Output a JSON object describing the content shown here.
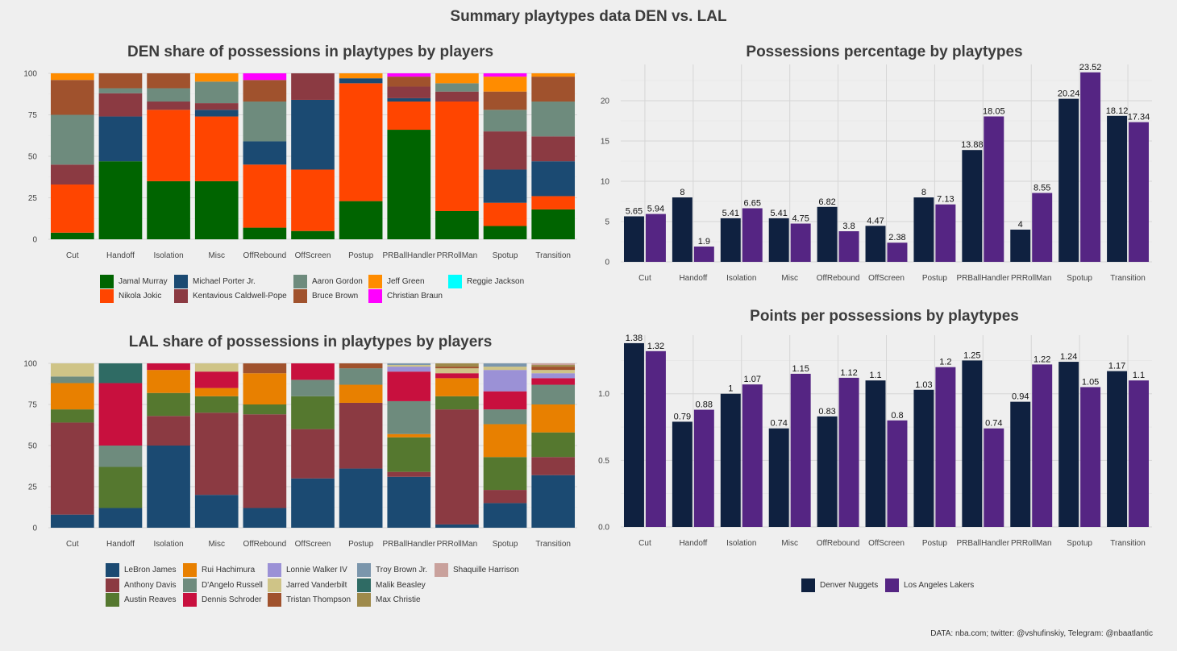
{
  "title": "Summary playtypes data DEN vs. LAL",
  "caption": "DATA: nba.com; twitter: @vshufinskiy, Telegram: @nbaatlantic",
  "legend_den": [
    {
      "name": "Jamal Murray",
      "color": "#006400"
    },
    {
      "name": "Nikola Jokic",
      "color": "#ff4500"
    },
    {
      "name": "Michael Porter Jr.",
      "color": "#1b4a72"
    },
    {
      "name": "Kentavious Caldwell-Pope",
      "color": "#8b3a42"
    },
    {
      "name": "Aaron Gordon",
      "color": "#6e8b7d"
    },
    {
      "name": "Bruce Brown",
      "color": "#a0522d"
    },
    {
      "name": "Jeff Green",
      "color": "#ff8c00"
    },
    {
      "name": "Christian Braun",
      "color": "#ff00ff"
    },
    {
      "name": "Reggie Jackson",
      "color": "#00ffff"
    }
  ],
  "legend_lal": [
    {
      "name": "LeBron James",
      "color": "#1b4a72"
    },
    {
      "name": "Anthony Davis",
      "color": "#8b3a42"
    },
    {
      "name": "Austin Reaves",
      "color": "#55782f"
    },
    {
      "name": "Rui Hachimura",
      "color": "#e88000"
    },
    {
      "name": "D'Angelo Russell",
      "color": "#6e8b7d"
    },
    {
      "name": "Dennis Schroder",
      "color": "#c8103e"
    },
    {
      "name": "Lonnie Walker IV",
      "color": "#9b91d6"
    },
    {
      "name": "Jarred Vanderbilt",
      "color": "#cfc487"
    },
    {
      "name": "Tristan Thompson",
      "color": "#a0522d"
    },
    {
      "name": "Troy Brown Jr.",
      "color": "#7b96ac"
    },
    {
      "name": "Malik Beasley",
      "color": "#2f6b64"
    },
    {
      "name": "Max Christie",
      "color": "#9e8a4b"
    },
    {
      "name": "Shaquille Harrison",
      "color": "#c9a19c"
    }
  ],
  "legend_teams": [
    {
      "name": "Denver Nuggets",
      "color": "#0f2140"
    },
    {
      "name": "Los Angeles Lakers",
      "color": "#552583"
    }
  ],
  "chart_data": [
    {
      "type": "bar",
      "stacked": true,
      "title": "DEN share of possessions in playtypes by players",
      "categories": [
        "Cut",
        "Handoff",
        "Isolation",
        "Misc",
        "OffRebound",
        "OffScreen",
        "Postup",
        "PRBallHandler",
        "PRRollMan",
        "Spotup",
        "Transition"
      ],
      "ylim": [
        0,
        100
      ],
      "yticks": [
        0,
        25,
        50,
        75,
        100
      ],
      "series": [
        {
          "name": "Jamal Murray",
          "color": "#006400",
          "values": [
            4,
            47,
            35,
            35,
            7,
            5,
            23,
            66,
            17,
            8,
            18
          ]
        },
        {
          "name": "Nikola Jokic",
          "color": "#ff4500",
          "values": [
            29,
            0,
            43,
            39,
            38,
            37,
            71,
            17,
            66,
            14,
            8
          ]
        },
        {
          "name": "Michael Porter Jr.",
          "color": "#1b4a72",
          "values": [
            0,
            27,
            0,
            4,
            14,
            42,
            3,
            2,
            0,
            20,
            21
          ]
        },
        {
          "name": "Kentavious Caldwell-Pope",
          "color": "#8b3a42",
          "values": [
            12,
            14,
            5,
            4,
            0,
            16,
            0,
            7,
            6,
            23,
            15
          ]
        },
        {
          "name": "Aaron Gordon",
          "color": "#6e8b7d",
          "values": [
            30,
            3,
            8,
            13,
            24,
            0,
            0,
            0,
            5,
            13,
            21
          ]
        },
        {
          "name": "Bruce Brown",
          "color": "#a0522d",
          "values": [
            21,
            9,
            9,
            0,
            13,
            0,
            0,
            6,
            0,
            11,
            15
          ]
        },
        {
          "name": "Jeff Green",
          "color": "#ff8c00",
          "values": [
            4,
            0,
            0,
            5,
            0,
            0,
            3,
            0,
            6,
            9,
            2
          ]
        },
        {
          "name": "Christian Braun",
          "color": "#ff00ff",
          "values": [
            0,
            0,
            0,
            0,
            4,
            0,
            0,
            2,
            0,
            2,
            0
          ]
        }
      ]
    },
    {
      "type": "bar",
      "title": "Possessions percentage by playtypes",
      "categories": [
        "Cut",
        "Handoff",
        "Isolation",
        "Misc",
        "OffRebound",
        "OffScreen",
        "Postup",
        "PRBallHandler",
        "PRRollMan",
        "Spotup",
        "Transition"
      ],
      "ylim": [
        0,
        24.5
      ],
      "yticks": [
        0,
        5,
        10,
        15,
        20
      ],
      "series": [
        {
          "name": "Denver Nuggets",
          "color": "#0f2140",
          "values": [
            5.65,
            8,
            5.41,
            5.41,
            6.82,
            4.47,
            8,
            13.88,
            4,
            20.24,
            18.12
          ]
        },
        {
          "name": "Los Angeles Lakers",
          "color": "#552583",
          "values": [
            5.94,
            1.9,
            6.65,
            4.75,
            3.8,
            2.38,
            7.13,
            18.05,
            8.55,
            23.52,
            17.34
          ]
        }
      ]
    },
    {
      "type": "bar",
      "stacked": true,
      "title": "LAL share of possessions in playtypes by players",
      "categories": [
        "Cut",
        "Handoff",
        "Isolation",
        "Misc",
        "OffRebound",
        "OffScreen",
        "Postup",
        "PRBallHandler",
        "PRRollMan",
        "Spotup",
        "Transition"
      ],
      "ylim": [
        0,
        100
      ],
      "yticks": [
        0,
        25,
        50,
        75,
        100
      ],
      "series": [
        {
          "name": "LeBron James",
          "color": "#1b4a72",
          "values": [
            8,
            12,
            50,
            20,
            12,
            30,
            36,
            31,
            2,
            15,
            32
          ]
        },
        {
          "name": "Anthony Davis",
          "color": "#8b3a42",
          "values": [
            56,
            0,
            18,
            50,
            57,
            30,
            40,
            3,
            70,
            8,
            11
          ]
        },
        {
          "name": "Austin Reaves",
          "color": "#55782f",
          "values": [
            8,
            25,
            14,
            10,
            6,
            20,
            0,
            21,
            8,
            20,
            15
          ]
        },
        {
          "name": "Rui Hachimura",
          "color": "#e88000",
          "values": [
            16,
            0,
            14,
            5,
            19,
            0,
            11,
            2,
            11,
            20,
            17
          ]
        },
        {
          "name": "D'Angelo Russell",
          "color": "#6e8b7d",
          "values": [
            4,
            13,
            0,
            0,
            0,
            10,
            10,
            20,
            0,
            9,
            12
          ]
        },
        {
          "name": "Dennis Schroder",
          "color": "#c8103e",
          "values": [
            0,
            38,
            4,
            10,
            0,
            10,
            0,
            18,
            3,
            11,
            4
          ]
        },
        {
          "name": "Lonnie Walker IV",
          "color": "#9b91d6",
          "values": [
            0,
            0,
            0,
            0,
            0,
            0,
            0,
            3,
            0,
            13,
            3
          ]
        },
        {
          "name": "Jarred Vanderbilt",
          "color": "#cfc487",
          "values": [
            8,
            0,
            0,
            5,
            0,
            0,
            0,
            1,
            3,
            2,
            2
          ]
        },
        {
          "name": "Tristan Thompson",
          "color": "#a0522d",
          "values": [
            0,
            0,
            0,
            0,
            6,
            0,
            3,
            0,
            1,
            0,
            2
          ]
        },
        {
          "name": "Troy Brown Jr.",
          "color": "#7b96ac",
          "values": [
            0,
            0,
            0,
            0,
            0,
            0,
            0,
            1,
            0,
            2,
            0
          ]
        },
        {
          "name": "Malik Beasley",
          "color": "#2f6b64",
          "values": [
            0,
            12,
            0,
            0,
            0,
            0,
            0,
            0,
            0,
            0,
            0
          ]
        },
        {
          "name": "Max Christie",
          "color": "#9e8a4b",
          "values": [
            0,
            0,
            0,
            0,
            0,
            0,
            0,
            0,
            2,
            0,
            1
          ]
        },
        {
          "name": "Shaquille Harrison",
          "color": "#c9a19c",
          "values": [
            0,
            0,
            0,
            0,
            0,
            0,
            0,
            0,
            0,
            0,
            1
          ]
        }
      ]
    },
    {
      "type": "bar",
      "title": "Points per possessions by playtypes",
      "categories": [
        "Cut",
        "Handoff",
        "Isolation",
        "Misc",
        "OffRebound",
        "OffScreen",
        "Postup",
        "PRBallHandler",
        "PRRollMan",
        "Spotup",
        "Transition"
      ],
      "ylim": [
        0,
        1.44
      ],
      "yticks": [
        0.0,
        0.5,
        1.0
      ],
      "ytick_labels": [
        "0.0",
        "0.5",
        "1.0"
      ],
      "series": [
        {
          "name": "Denver Nuggets",
          "color": "#0f2140",
          "values": [
            1.38,
            0.79,
            1,
            0.74,
            0.83,
            1.1,
            1.03,
            1.25,
            0.94,
            1.24,
            1.17
          ]
        },
        {
          "name": "Los Angeles Lakers",
          "color": "#552583",
          "values": [
            1.32,
            0.88,
            1.07,
            1.15,
            1.12,
            0.8,
            1.2,
            0.74,
            1.22,
            1.05,
            1.1
          ]
        }
      ]
    }
  ]
}
